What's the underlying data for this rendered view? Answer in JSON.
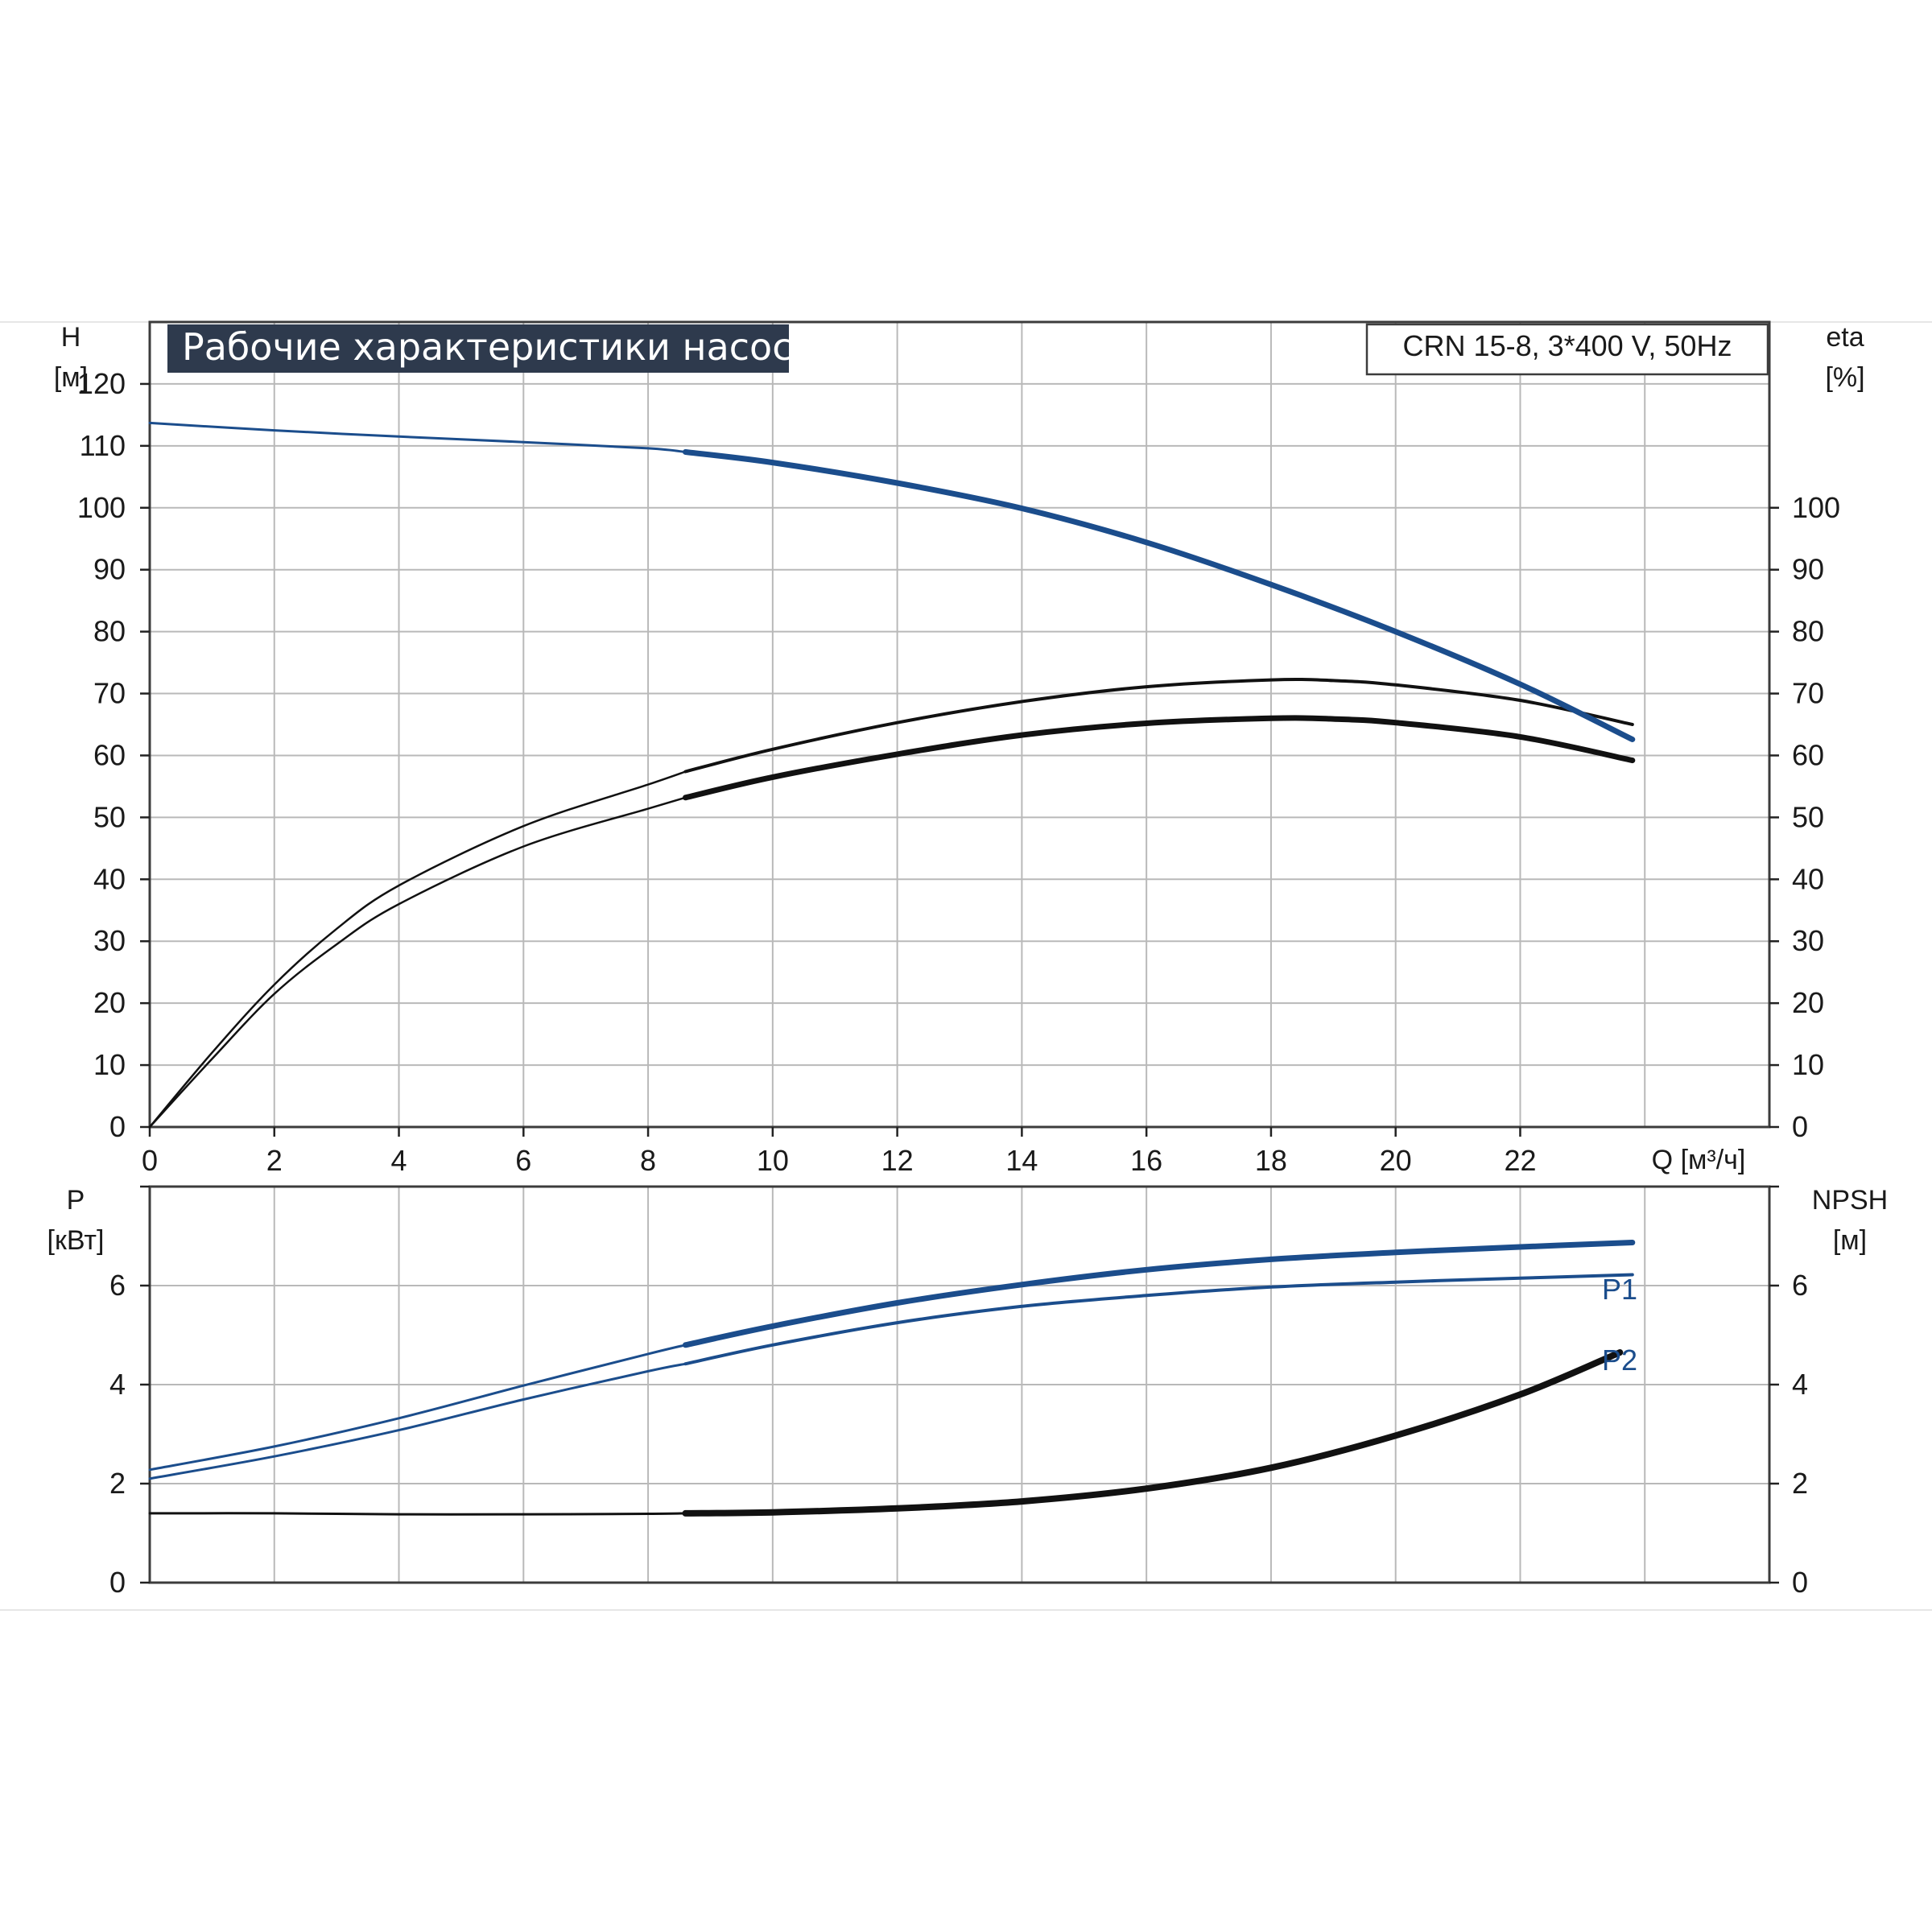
{
  "header": {
    "title": "Рабочие характеристики насоса",
    "model": "CRN 15-8, 3*400 V, 50Hz"
  },
  "colors": {
    "title_bg": "#2e3a4d",
    "blue": "#1b4d8c",
    "black": "#111111",
    "grid": "#b9b9b9"
  },
  "chart_data": [
    {
      "id": "upper",
      "type": "line",
      "ylabel_left": [
        "H",
        "[м]"
      ],
      "ylabel_right": [
        "eta",
        "[%]"
      ],
      "xlabel": "Q [м³/ч]",
      "xlim": [
        0,
        26
      ],
      "ylim": [
        0,
        130
      ],
      "x_ticks": [
        "0",
        "2",
        "4",
        "6",
        "8",
        "10",
        "12",
        "14",
        "16",
        "18",
        "20",
        "22"
      ],
      "y_ticks_left": [
        "0",
        "10",
        "20",
        "30",
        "40",
        "50",
        "60",
        "70",
        "80",
        "90",
        "100",
        "110",
        "120"
      ],
      "y_ticks_right": [
        "0",
        "10",
        "20",
        "30",
        "40",
        "50",
        "60",
        "70",
        "80",
        "90",
        "100"
      ],
      "grid": true,
      "series": [
        {
          "key": "H",
          "color": "blue",
          "points": [
            [
              0,
              113.7
            ],
            [
              2,
              112.5
            ],
            [
              4,
              111.5
            ],
            [
              6,
              110.6
            ],
            [
              8,
              109.6
            ],
            [
              8.6,
              109.0
            ],
            [
              10,
              107.3
            ],
            [
              12,
              104.0
            ],
            [
              14,
              99.9
            ],
            [
              16,
              94.4
            ],
            [
              18,
              87.6
            ],
            [
              20,
              80.0
            ],
            [
              22,
              71.5
            ],
            [
              23.8,
              62.6
            ]
          ]
        },
        {
          "key": "eta_upper",
          "color": "black",
          "points": [
            [
              0,
              0
            ],
            [
              1,
              12
            ],
            [
              2,
              23
            ],
            [
              3,
              32
            ],
            [
              4,
              39
            ],
            [
              6,
              48.6
            ],
            [
              8,
              55.3
            ],
            [
              8.6,
              57.4
            ],
            [
              10,
              61.0
            ],
            [
              12,
              65.3
            ],
            [
              14,
              68.7
            ],
            [
              16,
              71.1
            ],
            [
              18,
              72.2
            ],
            [
              19,
              72.1
            ],
            [
              20,
              71.4
            ],
            [
              22,
              68.9
            ],
            [
              23.8,
              65.0
            ]
          ]
        },
        {
          "key": "eta_lower",
          "color": "black",
          "points": [
            [
              0,
              0
            ],
            [
              1,
              11
            ],
            [
              2,
              21.5
            ],
            [
              3,
              29.5
            ],
            [
              4,
              36
            ],
            [
              6,
              45.3
            ],
            [
              8,
              51.4
            ],
            [
              8.6,
              53.2
            ],
            [
              10,
              56.5
            ],
            [
              12,
              60.2
            ],
            [
              14,
              63.3
            ],
            [
              16,
              65.2
            ],
            [
              18,
              66.0
            ],
            [
              19,
              65.9
            ],
            [
              20,
              65.3
            ],
            [
              22,
              63.0
            ],
            [
              23.8,
              59.2
            ]
          ]
        }
      ]
    },
    {
      "id": "lower",
      "type": "line",
      "ylabel_left": [
        "P",
        "[кВт]"
      ],
      "ylabel_right": [
        "NPSH",
        "[м]"
      ],
      "xlim": [
        0,
        26
      ],
      "ylim": [
        0,
        8
      ],
      "y_ticks_left": [
        "0",
        "2",
        "4",
        "6"
      ],
      "y_ticks_right": [
        "0",
        "2",
        "4",
        "6"
      ],
      "grid": true,
      "series": [
        {
          "key": "P1",
          "name": "P1",
          "color": "blue",
          "points": [
            [
              0,
              2.28
            ],
            [
              2,
              2.75
            ],
            [
              4,
              3.32
            ],
            [
              6,
              3.98
            ],
            [
              8,
              4.62
            ],
            [
              8.6,
              4.8
            ],
            [
              10,
              5.18
            ],
            [
              12,
              5.65
            ],
            [
              14,
              6.02
            ],
            [
              16,
              6.32
            ],
            [
              18,
              6.53
            ],
            [
              20,
              6.67
            ],
            [
              22,
              6.78
            ],
            [
              23.8,
              6.87
            ]
          ]
        },
        {
          "key": "P2",
          "name": "P2",
          "color": "blue",
          "points": [
            [
              0,
              2.1
            ],
            [
              2,
              2.55
            ],
            [
              4,
              3.08
            ],
            [
              6,
              3.7
            ],
            [
              8,
              4.27
            ],
            [
              8.6,
              4.42
            ],
            [
              10,
              4.8
            ],
            [
              12,
              5.25
            ],
            [
              14,
              5.58
            ],
            [
              16,
              5.8
            ],
            [
              18,
              5.97
            ],
            [
              20,
              6.07
            ],
            [
              22,
              6.15
            ],
            [
              23.8,
              6.22
            ]
          ]
        },
        {
          "key": "NPSH",
          "color": "black",
          "points": [
            [
              0,
              1.4
            ],
            [
              2,
              1.4
            ],
            [
              4,
              1.38
            ],
            [
              6,
              1.38
            ],
            [
              8,
              1.39
            ],
            [
              8.6,
              1.4
            ],
            [
              10,
              1.42
            ],
            [
              12,
              1.5
            ],
            [
              14,
              1.64
            ],
            [
              16,
              1.9
            ],
            [
              18,
              2.32
            ],
            [
              20,
              2.97
            ],
            [
              22,
              3.8
            ],
            [
              23.6,
              4.65
            ]
          ]
        }
      ]
    }
  ]
}
